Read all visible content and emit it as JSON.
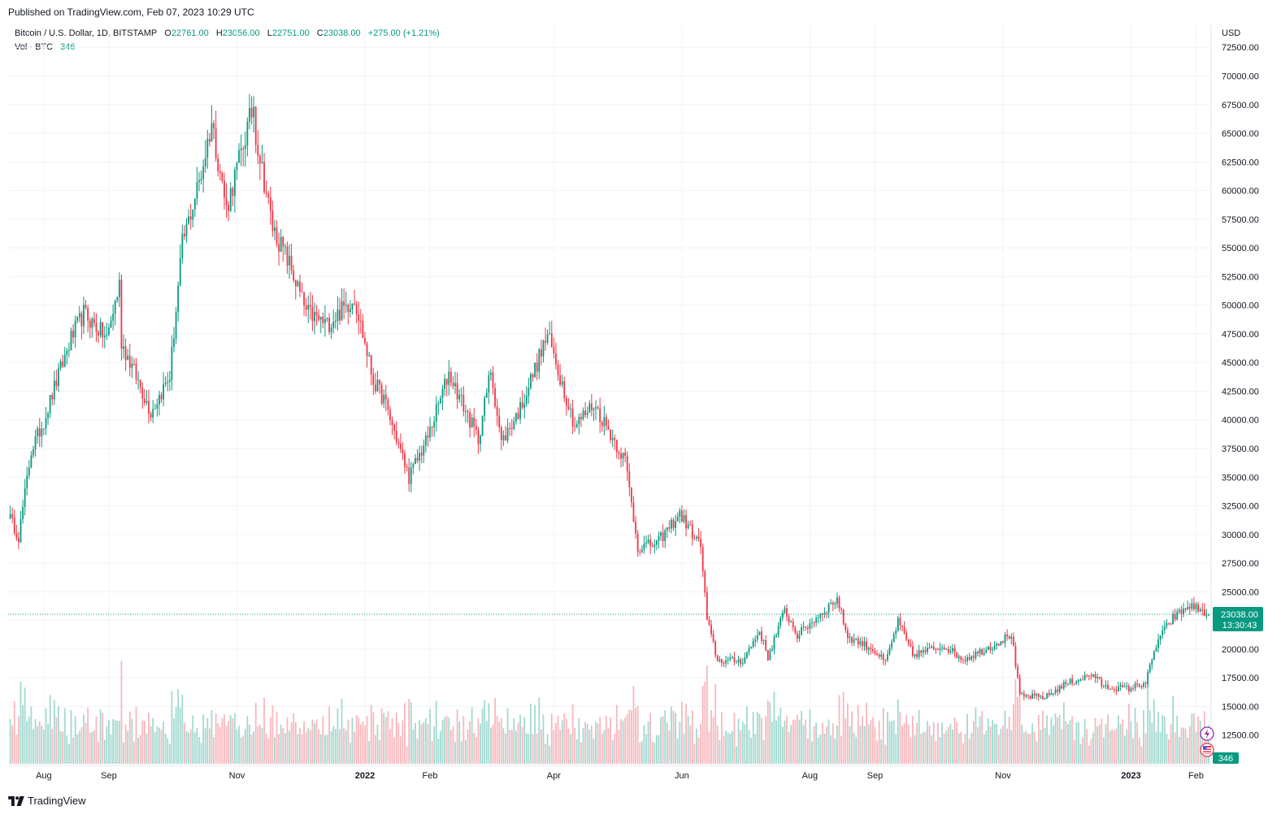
{
  "published": "Published on TradingView.com, Feb 07, 2023 10:29 UTC",
  "legend": {
    "symbol": "Bitcoin / U.S. Dollar, 1D, BITSTAMP",
    "o_label": "O",
    "o_value": "22761.00",
    "h_label": "H",
    "h_value": "23056.00",
    "l_label": "L",
    "l_value": "22751.00",
    "c_label": "C",
    "c_value": "23038.00",
    "change": "+275.00 (+1.21%)",
    "vol_label": "Vol · BTC",
    "vol_value": "346"
  },
  "footer": {
    "brand": "TradingView"
  },
  "price_tag": {
    "price": "23038.00",
    "countdown": "13:30:43"
  },
  "volume_tag": "346",
  "currency": "USD",
  "colors": {
    "up": "#089981",
    "down": "#f23645",
    "up_vol": "#a3d9d0",
    "down_vol": "#f7b8bd",
    "grid": "#f0f3fa"
  },
  "chart_data": {
    "type": "candlestick",
    "title": "Bitcoin / U.S. Dollar, 1D, BITSTAMP",
    "currency": "USD",
    "ylim": [
      10000,
      74500
    ],
    "y_ticks": [
      "12500.00",
      "15000.00",
      "17500.00",
      "20000.00",
      "22500.00",
      "25000.00",
      "27500.00",
      "30000.00",
      "32500.00",
      "35000.00",
      "37500.00",
      "40000.00",
      "42500.00",
      "45000.00",
      "47500.00",
      "50000.00",
      "52500.00",
      "55000.00",
      "57500.00",
      "60000.00",
      "62500.00",
      "65000.00",
      "67500.00",
      "70000.00",
      "72500.00"
    ],
    "x_ticks": [
      {
        "label": "Aug",
        "date": "2021-08-01"
      },
      {
        "label": "Sep",
        "date": "2021-09-01"
      },
      {
        "label": "Nov",
        "date": "2021-11-01"
      },
      {
        "label": "2022",
        "date": "2022-01-01"
      },
      {
        "label": "Feb",
        "date": "2022-02-01"
      },
      {
        "label": "Apr",
        "date": "2022-04-01"
      },
      {
        "label": "Jun",
        "date": "2022-06-01"
      },
      {
        "label": "Aug",
        "date": "2022-08-01"
      },
      {
        "label": "Sep",
        "date": "2022-09-01"
      },
      {
        "label": "Nov",
        "date": "2022-11-01"
      },
      {
        "label": "2023",
        "date": "2023-01-01"
      },
      {
        "label": "Feb",
        "date": "2023-02-01"
      }
    ],
    "date_range": [
      "2021-07-15",
      "2023-02-07"
    ],
    "last_close": 23038,
    "close_anchors": [
      [
        "2021-07-15",
        31800
      ],
      [
        "2021-07-20",
        29800
      ],
      [
        "2021-07-26",
        37300
      ],
      [
        "2021-08-01",
        39900
      ],
      [
        "2021-08-06",
        42800
      ],
      [
        "2021-08-14",
        47100
      ],
      [
        "2021-08-20",
        49300
      ],
      [
        "2021-08-31",
        47100
      ],
      [
        "2021-09-06",
        51800
      ],
      [
        "2021-09-07",
        46800
      ],
      [
        "2021-09-21",
        40700
      ],
      [
        "2021-09-30",
        43800
      ],
      [
        "2021-10-06",
        55300
      ],
      [
        "2021-10-15",
        61500
      ],
      [
        "2021-10-20",
        66000
      ],
      [
        "2021-10-27",
        58400
      ],
      [
        "2021-11-09",
        67500
      ],
      [
        "2021-11-10",
        64900
      ],
      [
        "2021-11-18",
        56800
      ],
      [
        "2021-11-26",
        53600
      ],
      [
        "2021-12-04",
        49400
      ],
      [
        "2021-12-14",
        48300
      ],
      [
        "2021-12-27",
        50700
      ],
      [
        "2022-01-05",
        43400
      ],
      [
        "2022-01-10",
        41800
      ],
      [
        "2022-01-22",
        35000
      ],
      [
        "2022-01-31",
        38500
      ],
      [
        "2022-02-10",
        44100
      ],
      [
        "2022-02-24",
        38300
      ],
      [
        "2022-03-02",
        44400
      ],
      [
        "2022-03-07",
        38000
      ],
      [
        "2022-03-16",
        41000
      ],
      [
        "2022-03-29",
        47400
      ],
      [
        "2022-04-11",
        39500
      ],
      [
        "2022-04-20",
        41400
      ],
      [
        "2022-05-05",
        36500
      ],
      [
        "2022-05-11",
        28900
      ],
      [
        "2022-05-20",
        29200
      ],
      [
        "2022-05-31",
        31800
      ],
      [
        "2022-06-10",
        29000
      ],
      [
        "2022-06-13",
        22500
      ],
      [
        "2022-06-18",
        19000
      ],
      [
        "2022-06-30",
        19000
      ],
      [
        "2022-07-08",
        21600
      ],
      [
        "2022-07-12",
        19300
      ],
      [
        "2022-07-20",
        23400
      ],
      [
        "2022-07-26",
        21200
      ],
      [
        "2022-08-14",
        24400
      ],
      [
        "2022-08-19",
        21100
      ],
      [
        "2022-08-31",
        20000
      ],
      [
        "2022-09-06",
        18800
      ],
      [
        "2022-09-12",
        22400
      ],
      [
        "2022-09-19",
        19500
      ],
      [
        "2022-10-04",
        20300
      ],
      [
        "2022-10-13",
        19100
      ],
      [
        "2022-10-25",
        20100
      ],
      [
        "2022-11-05",
        21300
      ],
      [
        "2022-11-09",
        15900
      ],
      [
        "2022-11-21",
        15800
      ],
      [
        "2022-12-01",
        17000
      ],
      [
        "2022-12-14",
        17800
      ],
      [
        "2022-12-19",
        16700
      ],
      [
        "2022-12-31",
        16550
      ],
      [
        "2023-01-08",
        17100
      ],
      [
        "2023-01-14",
        20900
      ],
      [
        "2023-01-21",
        22700
      ],
      [
        "2023-01-29",
        23800
      ],
      [
        "2023-02-02",
        23500
      ],
      [
        "2023-02-07",
        23038
      ]
    ]
  }
}
